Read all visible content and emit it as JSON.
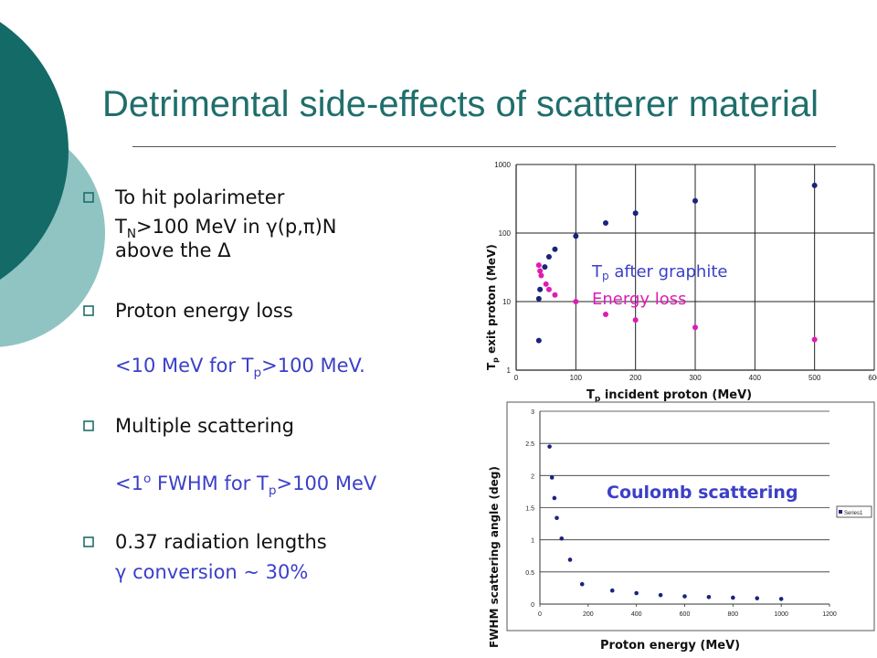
{
  "slide": {
    "title": "Detrimental side-effects of scatterer material",
    "accent_color": "#1f6e6c",
    "bullets": [
      {
        "icon": "hollow-square-bullet-icon",
        "line1": "To hit polarimeter",
        "line2_a": "T",
        "line2_sub": "N",
        "line2_b": ">100 MeV in γ(p,π)N",
        "line3": "above the Δ"
      },
      {
        "icon": "hollow-square-bullet-icon",
        "line1": "Proton energy loss",
        "detail_a": "<10 MeV for T",
        "detail_sub": "p",
        "detail_b": ">100 MeV."
      },
      {
        "icon": "hollow-square-bullet-icon",
        "line1": "Multiple scattering",
        "detail_a": "<1",
        "detail_sup": "o",
        "detail_b": " FWHM for T",
        "detail_sub": "p",
        "detail_c": ">100 MeV"
      },
      {
        "icon": "hollow-square-bullet-icon",
        "line1": "0.37 radiation lengths",
        "detail": "γ conversion ~ 30%"
      }
    ]
  },
  "chart_data": [
    {
      "type": "scatter",
      "x_title": "T",
      "x_title_sub": "p",
      "x_title_rest": " incident proton (MeV)",
      "y_title": "T",
      "y_title_sub": "p",
      "y_title_rest": " exit proton (MeV)",
      "xlim": [
        0,
        600
      ],
      "ylim": [
        1,
        1000
      ],
      "y_scale": "log",
      "x_ticks": [
        "0",
        "100",
        "200",
        "300",
        "400",
        "500",
        "600"
      ],
      "y_ticks": [
        "1",
        "10",
        "100",
        "1000"
      ],
      "grid": true,
      "annotations": [
        {
          "text_a": "T",
          "text_sub": "p",
          "text_b": " after graphite",
          "color": "#3b3fc8"
        },
        {
          "text": "Energy loss",
          "color": "#e01ab4"
        }
      ],
      "series": [
        {
          "color": "#1a237e",
          "points": [
            [
              38,
              2.7
            ],
            [
              38,
              11
            ],
            [
              40,
              15
            ],
            [
              48,
              32
            ],
            [
              55,
              45
            ],
            [
              65,
              58
            ],
            [
              100,
              90
            ],
            [
              150,
              140
            ],
            [
              200,
              195
            ],
            [
              300,
              295
            ],
            [
              500,
              495
            ]
          ]
        },
        {
          "color": "#e01ab4",
          "points": [
            [
              38,
              34
            ],
            [
              40,
              28
            ],
            [
              42,
              24
            ],
            [
              50,
              18
            ],
            [
              55,
              15
            ],
            [
              65,
              12.5
            ],
            [
              100,
              10
            ],
            [
              150,
              6.5
            ],
            [
              200,
              5.4
            ],
            [
              300,
              4.2
            ],
            [
              500,
              2.8
            ]
          ]
        }
      ]
    },
    {
      "type": "scatter",
      "x_title": "Proton energy (MeV)",
      "y_title": "FWHM scattering angle (deg)",
      "xlim": [
        0,
        1200
      ],
      "ylim": [
        0,
        3
      ],
      "x_ticks": [
        "0",
        "200",
        "400",
        "600",
        "800",
        "1000",
        "1200"
      ],
      "y_ticks": [
        "0",
        "0.5",
        "1",
        "1.5",
        "2",
        "2.5",
        "3"
      ],
      "grid": true,
      "annotation": "Coulomb scattering",
      "legend": "Series1",
      "legend_position": "right",
      "series": [
        {
          "name": "Series1",
          "color": "#1a237e",
          "points": [
            [
              40,
              2.45
            ],
            [
              50,
              1.97
            ],
            [
              60,
              1.65
            ],
            [
              70,
              1.34
            ],
            [
              90,
              1.02
            ],
            [
              125,
              0.69
            ],
            [
              175,
              0.31
            ],
            [
              300,
              0.21
            ],
            [
              400,
              0.17
            ],
            [
              500,
              0.14
            ],
            [
              600,
              0.12
            ],
            [
              700,
              0.11
            ],
            [
              800,
              0.1
            ],
            [
              900,
              0.09
            ],
            [
              1000,
              0.08
            ]
          ]
        }
      ]
    }
  ]
}
